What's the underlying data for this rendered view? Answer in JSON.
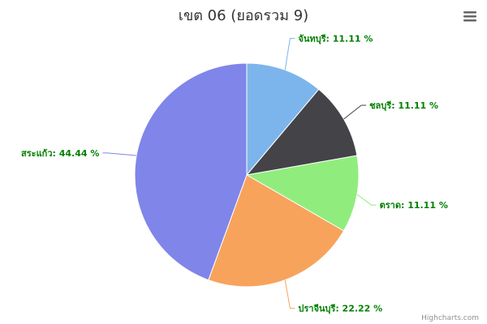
{
  "chart_data": {
    "type": "pie",
    "title": "เขต 06 (ยอดรวม 9)",
    "slices": [
      {
        "name": "จันทบุรี",
        "value": 11.11,
        "label": "จันทบุรี: 11.11 %",
        "color": "#7cb5ec"
      },
      {
        "name": "ชลบุรี",
        "value": 11.11,
        "label": "ชลบุรี: 11.11 %",
        "color": "#434348"
      },
      {
        "name": "ตราด",
        "value": 11.11,
        "label": "ตราด: 11.11 %",
        "color": "#90ed7d"
      },
      {
        "name": "ปราจีนบุรี",
        "value": 22.22,
        "label": "ปราจีนบุรี: 22.22 %",
        "color": "#f7a35c"
      },
      {
        "name": "สระแก้ว",
        "value": 44.44,
        "label": "สระแก้ว: 44.44 %",
        "color": "#8085e9"
      }
    ],
    "label_color": "#008000"
  },
  "credits": "Highcharts.com",
  "menu_icon": "hamburger-menu-icon"
}
